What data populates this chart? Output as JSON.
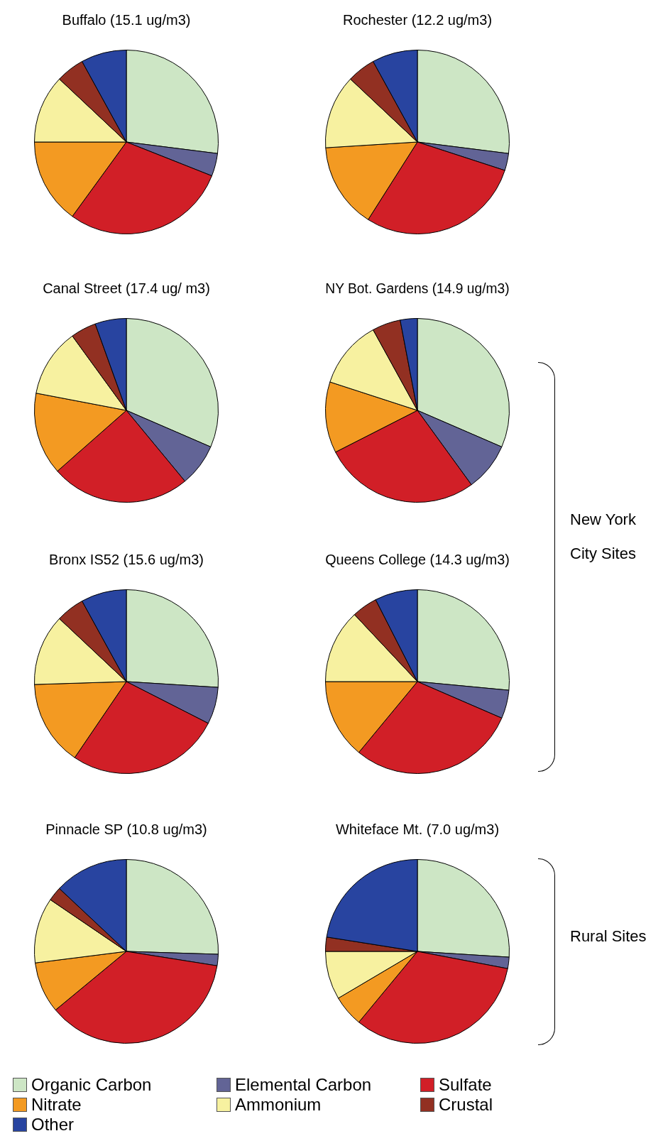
{
  "chart_data": [
    {
      "type": "pie",
      "title": "Buffalo (15.1 ug/m3)",
      "categories": [
        null,
        null,
        null,
        null,
        null,
        null,
        null
      ],
      "values": [
        27,
        4,
        29,
        15,
        12,
        5,
        8
      ],
      "colors": [
        "#cde6c5",
        "#626496",
        "#d11f27",
        "#f39a22",
        "#f7f1a0",
        "#923022",
        "#2844a0"
      ]
    },
    {
      "type": "pie",
      "title": "Rochester (12.2 ug/m3)",
      "categories": [
        null,
        null,
        null,
        null,
        null,
        null,
        null
      ],
      "values": [
        27,
        3,
        29,
        15,
        13,
        5,
        8
      ],
      "colors": [
        "#cde6c5",
        "#626496",
        "#d11f27",
        "#f39a22",
        "#f7f1a0",
        "#923022",
        "#2844a0"
      ]
    },
    {
      "type": "pie",
      "title": "Canal Street (17.4 ug/ m3)",
      "categories": [
        null,
        null,
        null,
        null,
        null,
        null,
        null
      ],
      "values": [
        31.5,
        7.5,
        24.5,
        14.5,
        12,
        4.5,
        5.5
      ],
      "colors": [
        "#cde6c5",
        "#626496",
        "#d11f27",
        "#f39a22",
        "#f7f1a0",
        "#923022",
        "#2844a0"
      ]
    },
    {
      "type": "pie",
      "title": "NY Bot. Gardens (14.9 ug/m3)",
      "categories": [
        null,
        null,
        null,
        null,
        null,
        null,
        null
      ],
      "values": [
        31.5,
        8.5,
        27.5,
        12.5,
        12,
        5,
        3
      ],
      "colors": [
        "#cde6c5",
        "#626496",
        "#d11f27",
        "#f39a22",
        "#f7f1a0",
        "#923022",
        "#2844a0"
      ],
      "annotations": [
        "New York City Sites"
      ]
    },
    {
      "type": "pie",
      "title": "Bronx IS52 (15.6 ug/m3)",
      "categories": [
        null,
        null,
        null,
        null,
        null,
        null,
        null
      ],
      "values": [
        26,
        6.5,
        27,
        15,
        12.5,
        5,
        8
      ],
      "colors": [
        "#cde6c5",
        "#626496",
        "#d11f27",
        "#f39a22",
        "#f7f1a0",
        "#923022",
        "#2844a0"
      ]
    },
    {
      "type": "pie",
      "title": "Queens College (14.3 ug/m3)",
      "categories": [
        null,
        null,
        null,
        null,
        null,
        null,
        null
      ],
      "values": [
        26.5,
        5,
        29.5,
        14,
        13,
        4.5,
        7.5
      ],
      "colors": [
        "#cde6c5",
        "#626496",
        "#d11f27",
        "#f39a22",
        "#f7f1a0",
        "#923022",
        "#2844a0"
      ]
    },
    {
      "type": "pie",
      "title": "Pinnacle SP (10.8 ug/m3)",
      "categories": [
        null,
        null,
        null,
        null,
        null,
        null,
        null
      ],
      "values": [
        25.5,
        2,
        36.5,
        9,
        11.5,
        2.5,
        13
      ],
      "colors": [
        "#cde6c5",
        "#626496",
        "#d11f27",
        "#f39a22",
        "#f7f1a0",
        "#923022",
        "#2844a0"
      ]
    },
    {
      "type": "pie",
      "title": "Whiteface Mt. (7.0 ug/m3)",
      "categories": [
        "Organic Carbon",
        "Elemental Carbon",
        "Sulfate",
        "Nitrate",
        "Ammonium",
        "Crustal",
        "Other"
      ],
      "values": [
        26,
        2,
        33,
        5.5,
        8.5,
        2.5,
        22.5
      ],
      "colors": [
        "#cde6c5",
        "#626496",
        "#d11f27",
        "#f39a22",
        "#f7f1a0",
        "#923022",
        "#2844a0"
      ],
      "annotations": [
        "Rural Sites"
      ],
      "legend": "bottom"
    }
  ]
}
